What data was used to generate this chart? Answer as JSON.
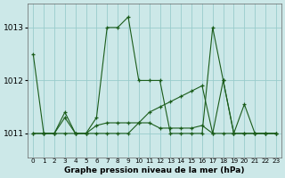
{
  "xlabel": "Graphe pression niveau de la mer (hPa)",
  "x_labels": [
    "0",
    "1",
    "2",
    "3",
    "4",
    "5",
    "6",
    "7",
    "8",
    "9",
    "10",
    "11",
    "12",
    "13",
    "14",
    "15",
    "16",
    "17",
    "18",
    "19",
    "20",
    "21",
    "22",
    "23"
  ],
  "ylim": [
    1010.55,
    1013.45
  ],
  "yticks": [
    1011,
    1012,
    1013
  ],
  "xlim": [
    -0.5,
    23.5
  ],
  "bg_color": "#cce8e8",
  "grid_color": "#99cccc",
  "line_color": "#1a5c1a",
  "series": [
    [
      1012.5,
      1011.0,
      1011.0,
      1011.4,
      1011.0,
      1011.0,
      1011.3,
      1013.0,
      1013.0,
      1013.2,
      1012.0,
      1012.0,
      1012.0,
      1011.0,
      1011.0,
      1011.0,
      1011.0,
      1013.0,
      1012.0,
      1011.0,
      1011.0,
      1011.0,
      1011.0,
      1011.0
    ],
    [
      1011.0,
      1011.0,
      1011.0,
      1011.0,
      1011.0,
      1011.0,
      1011.0,
      1011.0,
      1011.0,
      1011.0,
      1011.2,
      1011.4,
      1011.5,
      1011.6,
      1011.7,
      1011.8,
      1011.9,
      1011.0,
      1012.0,
      1011.0,
      1011.0,
      1011.0,
      1011.0,
      1011.0
    ],
    [
      1011.0,
      1011.0,
      1011.0,
      1011.3,
      1011.0,
      1011.0,
      1011.15,
      1011.2,
      1011.2,
      1011.2,
      1011.2,
      1011.2,
      1011.1,
      1011.1,
      1011.1,
      1011.1,
      1011.15,
      1011.0,
      1011.0,
      1011.0,
      1011.55,
      1011.0,
      1011.0,
      1011.0
    ]
  ]
}
